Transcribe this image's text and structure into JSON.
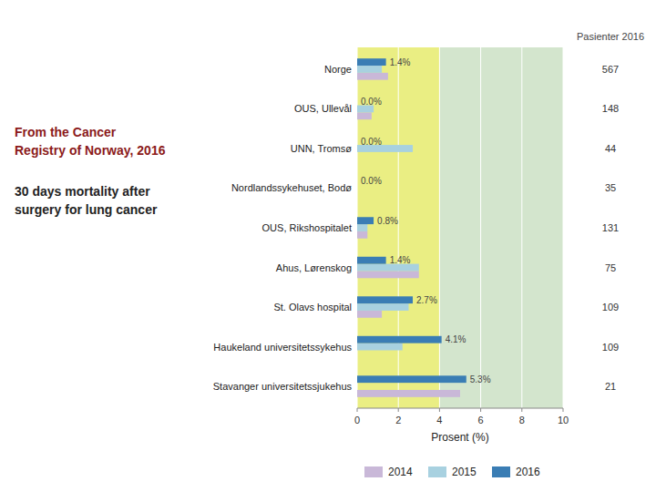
{
  "chart_data": {
    "type": "bar",
    "orientation": "horizontal",
    "title": "From the Cancer\nRegistry of Norway, 2016",
    "subtitle": "30 days mortality after\nsurgery for lung cancer",
    "x_label": "Prosent (%)",
    "categories": [
      "Norge",
      "OUS, Ullevål",
      "UNN, Tromsø",
      "Nordlandssykehuset, Bodø",
      "OUS, Rikshospitalet",
      "Ahus, Lørenskog",
      "St. Olavs hospital",
      "Haukeland universitetssykehus",
      "Stavanger universitetssjukehus"
    ],
    "series": [
      {
        "name": "2014",
        "color": "#c9b8d8",
        "values": [
          1.5,
          0.7,
          0.0,
          0.0,
          0.5,
          3.0,
          1.2,
          0.0,
          5.0
        ]
      },
      {
        "name": "2015",
        "color": "#a8d1e0",
        "values": [
          1.2,
          0.8,
          2.7,
          0.0,
          0.5,
          3.0,
          2.5,
          2.2,
          0.0
        ]
      },
      {
        "name": "2016",
        "color": "#3a7db4",
        "values": [
          1.4,
          0.0,
          0.0,
          0.0,
          0.8,
          1.4,
          2.7,
          4.1,
          5.3
        ],
        "value_labels": [
          "1.4%",
          "0.0%",
          "0.0%",
          "0.0%",
          "0.8%",
          "1.4%",
          "2.7%",
          "4.1%",
          "5.3%"
        ]
      }
    ],
    "patients_title": "Pasienter 2016",
    "patients": [
      567,
      148,
      44,
      35,
      131,
      75,
      109,
      109,
      21
    ],
    "bands": [
      {
        "from": 0,
        "to": 10,
        "color": "#c8dfc0"
      },
      {
        "from": 0,
        "to": 4,
        "color": "#f0f070"
      }
    ],
    "xlim": [
      0,
      10
    ],
    "xticks": [
      0,
      2,
      4,
      6,
      8,
      10
    ],
    "grid": true,
    "legend": "bottom",
    "data_labels": true
  }
}
